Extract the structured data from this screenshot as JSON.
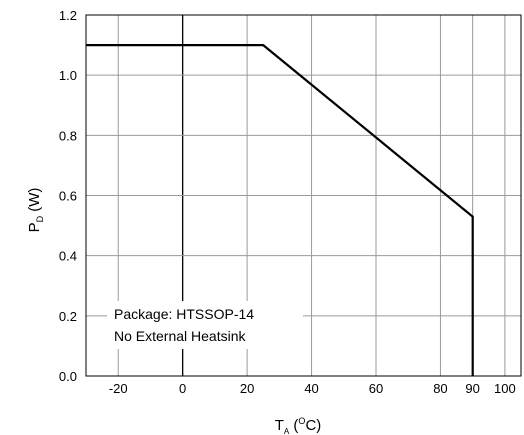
{
  "chart_data": {
    "type": "line",
    "title": "",
    "xlabel": {
      "main": "T",
      "sub": "A",
      "open": " (",
      "sup": "O",
      "unit": "C)"
    },
    "ylabel": {
      "main": "P",
      "sub": "D",
      "unit": " (W)"
    },
    "xlim": [
      -30,
      105
    ],
    "ylim": [
      0.0,
      1.2
    ],
    "x_ticks": [
      {
        "value": -20,
        "label": "-20"
      },
      {
        "value": 0,
        "label": "0"
      },
      {
        "value": 20,
        "label": "20"
      },
      {
        "value": 40,
        "label": "40"
      },
      {
        "value": 60,
        "label": "60"
      },
      {
        "value": 80,
        "label": "80"
      },
      {
        "value": 90,
        "label": "90"
      },
      {
        "value": 100,
        "label": "100"
      }
    ],
    "y_ticks": [
      {
        "value": 0.0,
        "label": "0.0"
      },
      {
        "value": 0.2,
        "label": "0.2"
      },
      {
        "value": 0.4,
        "label": "0.4"
      },
      {
        "value": 0.6,
        "label": "0.6"
      },
      {
        "value": 0.8,
        "label": "0.8"
      },
      {
        "value": 1.0,
        "label": "1.0"
      },
      {
        "value": 1.2,
        "label": "1.2"
      }
    ],
    "grid": true,
    "series": [
      {
        "x": [
          -30,
          25,
          90,
          90
        ],
        "y": [
          1.1,
          1.1,
          0.53,
          0.0
        ],
        "color": "#000000"
      }
    ],
    "annotations": [
      "Package: HTSSOP-14",
      "No External Heatsink"
    ]
  }
}
